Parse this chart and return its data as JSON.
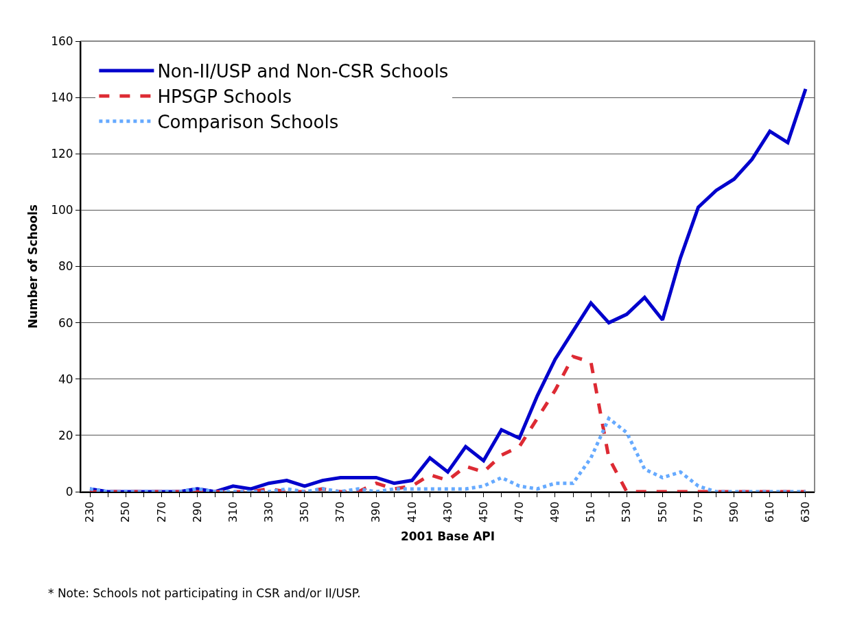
{
  "chart_data": {
    "type": "line",
    "xlabel": "2001 Base API",
    "ylabel": "Number of Schools",
    "x": [
      230,
      240,
      250,
      260,
      270,
      280,
      290,
      300,
      310,
      320,
      330,
      340,
      350,
      360,
      370,
      380,
      390,
      400,
      410,
      420,
      430,
      440,
      450,
      460,
      470,
      480,
      490,
      500,
      510,
      520,
      530,
      540,
      550,
      560,
      570,
      580,
      590,
      600,
      610,
      620,
      630
    ],
    "series": [
      {
        "name": "Non-II/USP and Non-CSR Schools",
        "color": "#0000cc",
        "line_style": "solid",
        "values": [
          1,
          0,
          0,
          0,
          0,
          0,
          1,
          0,
          2,
          1,
          3,
          4,
          2,
          4,
          5,
          5,
          5,
          3,
          4,
          12,
          7,
          16,
          11,
          22,
          19,
          34,
          47,
          57,
          67,
          60,
          63,
          69,
          61,
          83,
          101,
          107,
          111,
          118,
          128,
          124,
          143
        ]
      },
      {
        "name": "HPSGP Schools",
        "color": "#dd2a33",
        "line_style": "dashed",
        "values": [
          0,
          0,
          0,
          0,
          0,
          0,
          0,
          0,
          0,
          0,
          1,
          0,
          0,
          1,
          0,
          0,
          3,
          1,
          2,
          6,
          4,
          9,
          7,
          13,
          16,
          26,
          36,
          48,
          46,
          12,
          0,
          0,
          0,
          0,
          0,
          0,
          0,
          0,
          0,
          0,
          0
        ]
      },
      {
        "name": "Comparison Schools",
        "color": "#66aaff",
        "line_style": "dotted",
        "values": [
          1,
          0,
          0,
          0,
          0,
          0,
          1,
          0,
          0,
          0,
          0,
          1,
          0,
          1,
          0,
          1,
          0,
          1,
          1,
          1,
          1,
          1,
          2,
          5,
          2,
          1,
          3,
          3,
          12,
          26,
          21,
          8,
          5,
          7,
          2,
          0,
          0,
          0,
          0,
          0,
          0
        ]
      }
    ],
    "xlim": [
      225,
      635
    ],
    "xticks": [
      230,
      {
        "value": 240,
        "label": null
      },
      250,
      {
        "value": 260,
        "label": null
      },
      270,
      {
        "value": 280,
        "label": null
      },
      290,
      {
        "value": 300,
        "label": null
      },
      310,
      {
        "value": 320,
        "label": null
      },
      330,
      {
        "value": 340,
        "label": null
      },
      350,
      {
        "value": 360,
        "label": null
      },
      370,
      {
        "value": 380,
        "label": null
      },
      390,
      {
        "value": 400,
        "label": null
      },
      410,
      {
        "value": 420,
        "label": null
      },
      430,
      {
        "value": 440,
        "label": null
      },
      450,
      {
        "value": 460,
        "label": null
      },
      470,
      {
        "value": 480,
        "label": null
      },
      490,
      {
        "value": 500,
        "label": null
      },
      510,
      {
        "value": 520,
        "label": null
      },
      530,
      {
        "value": 540,
        "label": null
      },
      550,
      {
        "value": 560,
        "label": null
      },
      570,
      {
        "value": 580,
        "label": null
      },
      590,
      {
        "value": 600,
        "label": null
      },
      610,
      {
        "value": 620,
        "label": null
      },
      630
    ],
    "ylim": [
      0,
      160
    ],
    "yticks": [
      0,
      20,
      40,
      60,
      80,
      100,
      120,
      140,
      160
    ],
    "grid": "y",
    "legend": "top left",
    "marker": "none",
    "annotations": [
      "* Note: Schools not participating in CSR and/or II/USP."
    ]
  }
}
